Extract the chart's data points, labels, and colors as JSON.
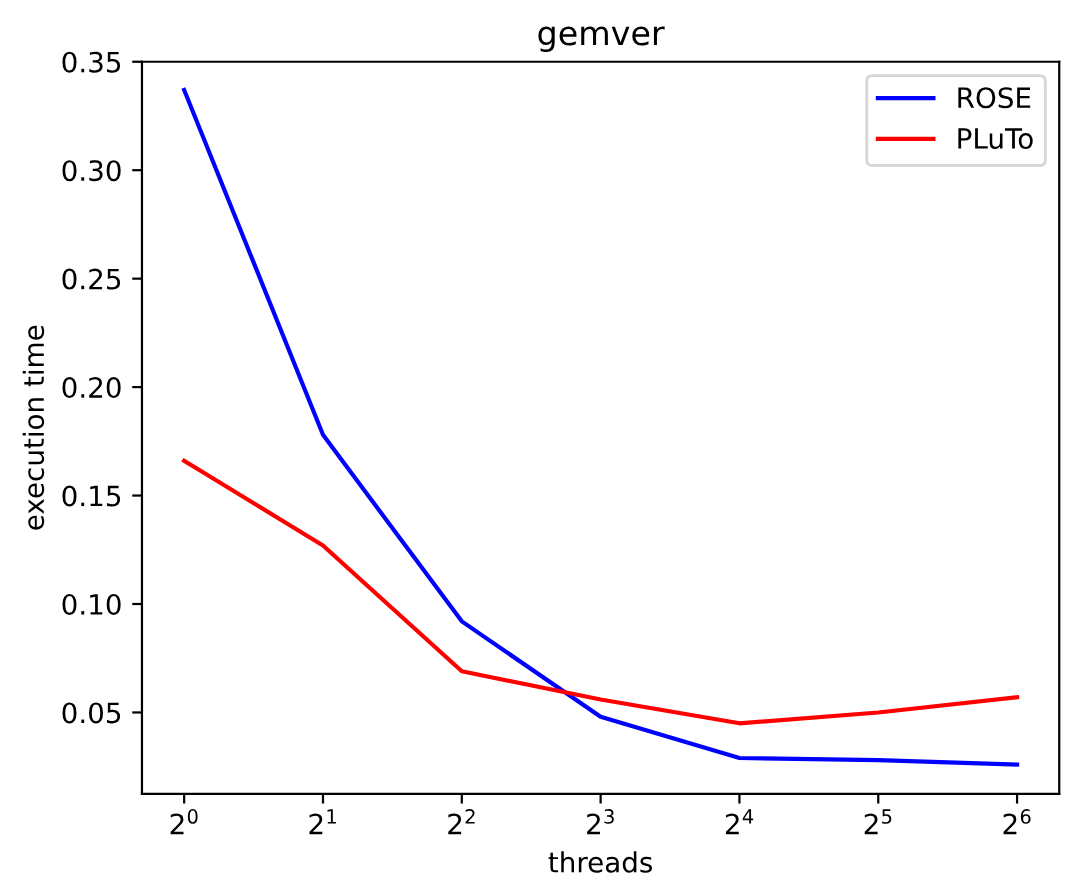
{
  "chart_data": {
    "type": "line",
    "title": "gemver",
    "xlabel": "threads",
    "ylabel": "execution time",
    "x": [
      1,
      2,
      4,
      8,
      16,
      32,
      64
    ],
    "series": [
      {
        "name": "ROSE",
        "color": "#0000ff",
        "values": [
          0.337,
          0.178,
          0.092,
          0.048,
          0.029,
          0.028,
          0.026
        ]
      },
      {
        "name": "PLuTo",
        "color": "#ff0000",
        "values": [
          0.166,
          0.127,
          0.069,
          0.056,
          0.045,
          0.05,
          0.057
        ]
      }
    ],
    "log": "x",
    "xlim": [
      0.81,
      79
    ],
    "ylim": [
      0.0125,
      0.35
    ],
    "xticks": [
      {
        "value": 1,
        "label": "2$^{0}$"
      },
      {
        "value": 2,
        "label": "2$^{1}$"
      },
      {
        "value": 4,
        "label": "2$^{2}$"
      },
      {
        "value": 8,
        "label": "2$^{3}$"
      },
      {
        "value": 16,
        "label": "2$^{4}$"
      },
      {
        "value": 32,
        "label": "2$^{5}$"
      },
      {
        "value": 64,
        "label": "2$^{6}$"
      }
    ],
    "yticks": [
      {
        "value": 0.05,
        "label": "0.05"
      },
      {
        "value": 0.1,
        "label": "0.10"
      },
      {
        "value": 0.15,
        "label": "0.15"
      },
      {
        "value": 0.2,
        "label": "0.20"
      },
      {
        "value": 0.25,
        "label": "0.25"
      },
      {
        "value": 0.3,
        "label": "0.30"
      },
      {
        "value": 0.35,
        "label": "0.35"
      }
    ],
    "legend": "top right",
    "grid": false,
    "marker": "none",
    "line_style": "solid"
  }
}
